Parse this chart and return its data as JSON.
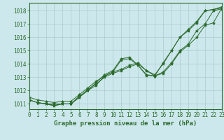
{
  "x": [
    0,
    1,
    2,
    3,
    4,
    5,
    6,
    7,
    8,
    9,
    10,
    11,
    12,
    13,
    14,
    15,
    16,
    17,
    18,
    19,
    20,
    21,
    22,
    23
  ],
  "series": [
    [
      1011.3,
      1011.1,
      1011.0,
      1011.0,
      1011.0,
      1011.0,
      1011.5,
      1012.1,
      1012.5,
      1013.0,
      1013.3,
      1013.5,
      1013.8,
      1014.0,
      1013.5,
      1013.1,
      1014.1,
      1015.0,
      1016.0,
      1016.5,
      1017.1,
      1018.0,
      1018.1,
      1018.2
    ],
    [
      1011.3,
      1011.1,
      1011.0,
      1010.9,
      1011.0,
      1011.0,
      1011.5,
      1012.0,
      1012.4,
      1013.1,
      1013.4,
      1014.3,
      1014.4,
      1013.9,
      1013.2,
      1013.1,
      1013.4,
      1014.1,
      1015.0,
      1015.5,
      1016.5,
      1017.0,
      1018.0,
      1018.15
    ],
    [
      1011.3,
      1011.1,
      1011.0,
      1010.85,
      1011.0,
      1011.0,
      1011.6,
      1012.0,
      1012.6,
      1013.2,
      1013.5,
      1014.4,
      1014.5,
      1013.9,
      1013.15,
      1013.1,
      1013.3,
      1014.0,
      1014.9,
      1015.4,
      1016.0,
      1016.9,
      1017.1,
      1018.2
    ],
    [
      1011.5,
      1011.3,
      1011.2,
      1011.1,
      1011.2,
      1011.2,
      1011.7,
      1012.2,
      1012.7,
      1013.1,
      1013.4,
      1013.6,
      1013.9,
      1014.1,
      1013.5,
      1013.2,
      1014.0,
      1015.0,
      1016.0,
      1016.6,
      1017.2,
      1018.0,
      1018.1,
      1018.3
    ]
  ],
  "bg_color": "#cce8ec",
  "grid_color": "#aacccc",
  "line_color": "#2d6a2d",
  "marker": "*",
  "marker_size": 3,
  "xlabel": "Graphe pression niveau de la mer (hPa)",
  "ylim": [
    1010.6,
    1018.6
  ],
  "xlim": [
    0,
    23
  ],
  "yticks": [
    1011,
    1012,
    1013,
    1014,
    1015,
    1016,
    1017,
    1018
  ],
  "xticks": [
    0,
    1,
    2,
    3,
    4,
    5,
    6,
    7,
    8,
    9,
    10,
    11,
    12,
    13,
    14,
    15,
    16,
    17,
    18,
    19,
    20,
    21,
    22,
    23
  ],
  "label_fontsize": 6.5,
  "tick_fontsize": 5.5
}
